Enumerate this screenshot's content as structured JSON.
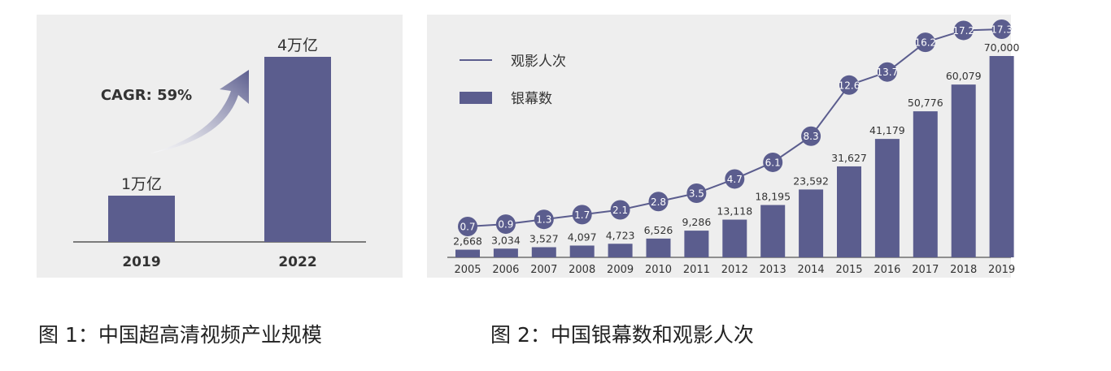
{
  "figures": {
    "left_caption": "图 1：中国超高清视频产业规模",
    "right_caption": "图 2：中国银幕数和观影人次"
  },
  "colors": {
    "bar": "#5b5d8e",
    "line": "#5b5d8e",
    "panel_bg": "#eeeeee",
    "marker_text": "#ffffff",
    "arrow": "#5b5d8e"
  },
  "chart_data": [
    {
      "type": "bar",
      "categories": [
        "2019",
        "2022"
      ],
      "values": [
        1,
        4
      ],
      "value_labels": [
        "1万亿",
        "4万亿"
      ],
      "annotation": "CAGR: 59%",
      "ylim": [
        0,
        4.6
      ]
    },
    {
      "type": "bar",
      "categories": [
        "2005",
        "2006",
        "2007",
        "2008",
        "2009",
        "2010",
        "2011",
        "2012",
        "2013",
        "2014",
        "2015",
        "2016",
        "2017",
        "2018",
        "2019"
      ],
      "series": [
        {
          "name": "银幕数",
          "type": "bar",
          "values": [
            2668,
            3034,
            3527,
            4097,
            4723,
            6526,
            9286,
            13118,
            18195,
            23592,
            31627,
            41179,
            50776,
            60079,
            70000
          ],
          "labels": [
            "2,668",
            "3,034",
            "3,527",
            "4,097",
            "4,723",
            "6,526",
            "9,286",
            "13,118",
            "18,195",
            "23,592",
            "31,627",
            "41,179",
            "50,776",
            "60,079",
            "70,000"
          ]
        },
        {
          "name": "观影人次",
          "type": "line",
          "values": [
            0.7,
            0.9,
            1.3,
            1.7,
            2.1,
            2.8,
            3.5,
            4.7,
            6.1,
            8.3,
            12.6,
            13.7,
            16.2,
            17.2,
            17.3
          ],
          "labels": [
            "0.7",
            "0.9",
            "1.3",
            "1.7",
            "2.1",
            "2.8",
            "3.5",
            "4.7",
            "6.1",
            "8.3",
            "12.6",
            "13.7",
            "16.2",
            "17.2",
            "17.3"
          ]
        }
      ],
      "legend": [
        "观影人次",
        "银幕数"
      ],
      "legend_position": "top-left",
      "bar_ylim": [
        0,
        76000
      ],
      "line_ylim": [
        0,
        19
      ]
    }
  ]
}
